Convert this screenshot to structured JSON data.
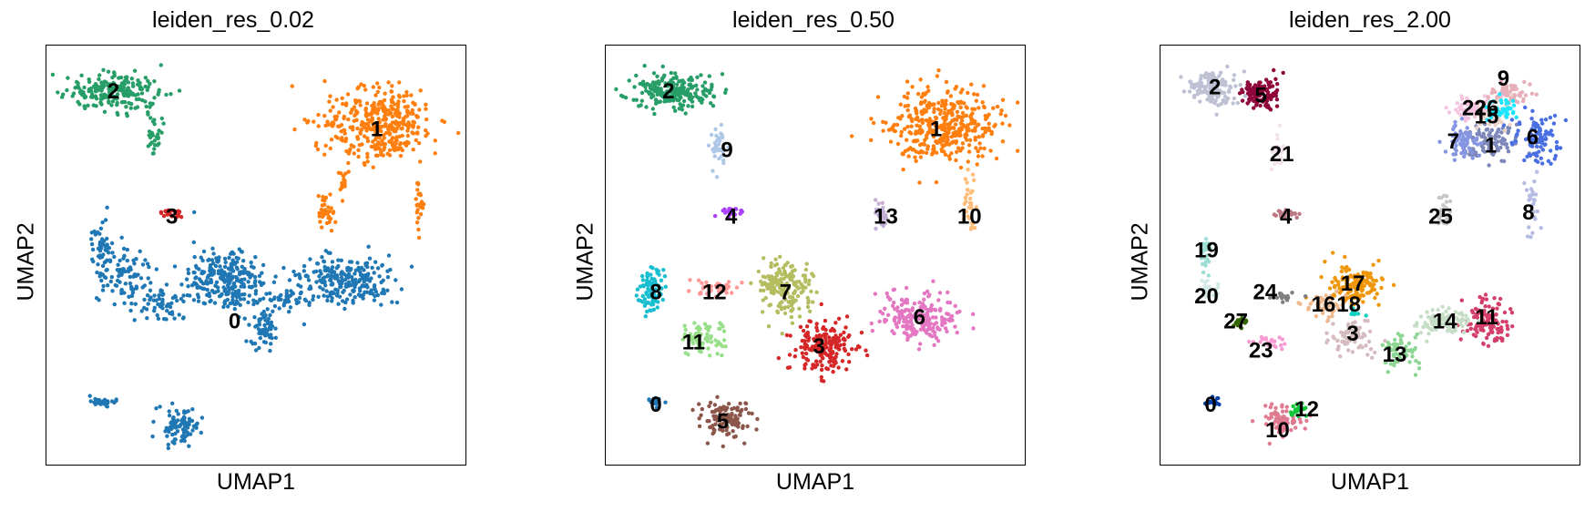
{
  "chart_data": [
    {
      "type": "scatter",
      "title": "leiden_res_0.02",
      "xlabel": "UMAP1",
      "ylabel": "UMAP2",
      "grid": false,
      "legend": "on data",
      "clusters": [
        {
          "label": "0",
          "color": "#1f77b4",
          "blobs": [
            [
              0.43,
              0.56,
              0.09,
              0.07,
              260
            ],
            [
              0.72,
              0.56,
              0.1,
              0.05,
              240
            ],
            [
              0.18,
              0.55,
              0.06,
              0.06,
              90
            ],
            [
              0.28,
              0.62,
              0.06,
              0.04,
              60
            ],
            [
              0.13,
              0.47,
              0.02,
              0.05,
              40
            ],
            [
              0.32,
              0.91,
              0.05,
              0.04,
              90
            ],
            [
              0.13,
              0.85,
              0.03,
              0.01,
              25
            ],
            [
              0.52,
              0.68,
              0.03,
              0.05,
              60
            ],
            [
              0.58,
              0.61,
              0.04,
              0.03,
              40
            ]
          ]
        },
        {
          "label": "1",
          "color": "#ff7f0e",
          "blobs": [
            [
              0.8,
              0.19,
              0.12,
              0.08,
              380
            ],
            [
              0.67,
              0.4,
              0.02,
              0.03,
              35
            ],
            [
              0.89,
              0.38,
              0.01,
              0.06,
              25
            ],
            [
              0.71,
              0.33,
              0.01,
              0.04,
              15
            ]
          ]
        },
        {
          "label": "2",
          "color": "#279e68",
          "blobs": [
            [
              0.16,
              0.11,
              0.1,
              0.04,
              220
            ],
            [
              0.26,
              0.22,
              0.02,
              0.05,
              30
            ]
          ]
        },
        {
          "label": "3",
          "color": "#d62728",
          "blobs": [
            [
              0.3,
              0.4,
              0.025,
              0.01,
              25
            ]
          ]
        }
      ],
      "labels": [
        {
          "text": "0",
          "x": 0.45,
          "y": 0.66
        },
        {
          "text": "1",
          "x": 0.79,
          "y": 0.2
        },
        {
          "text": "2",
          "x": 0.16,
          "y": 0.11
        },
        {
          "text": "3",
          "x": 0.3,
          "y": 0.41
        }
      ]
    },
    {
      "type": "scatter",
      "title": "leiden_res_0.50",
      "xlabel": "UMAP1",
      "ylabel": "UMAP2",
      "grid": false,
      "legend": "on data",
      "clusters": [
        {
          "label": "0",
          "color": "#1f77b4",
          "blobs": [
            [
              0.12,
              0.85,
              0.02,
              0.008,
              20
            ]
          ]
        },
        {
          "label": "1",
          "color": "#ff7f0e",
          "blobs": [
            [
              0.8,
              0.19,
              0.12,
              0.08,
              380
            ]
          ]
        },
        {
          "label": "2",
          "color": "#279e68",
          "blobs": [
            [
              0.16,
              0.11,
              0.1,
              0.04,
              220
            ]
          ]
        },
        {
          "label": "3",
          "color": "#d62728",
          "blobs": [
            [
              0.52,
              0.72,
              0.07,
              0.06,
              190
            ]
          ]
        },
        {
          "label": "4",
          "color": "#aa40fc",
          "blobs": [
            [
              0.3,
              0.4,
              0.025,
              0.01,
              25
            ]
          ]
        },
        {
          "label": "5",
          "color": "#8c564b",
          "blobs": [
            [
              0.29,
              0.89,
              0.05,
              0.04,
              120
            ]
          ]
        },
        {
          "label": "6",
          "color": "#e377c2",
          "blobs": [
            [
              0.75,
              0.65,
              0.08,
              0.05,
              210
            ]
          ]
        },
        {
          "label": "7",
          "color": "#b5bd61",
          "blobs": [
            [
              0.43,
              0.58,
              0.06,
              0.06,
              180
            ]
          ]
        },
        {
          "label": "8",
          "color": "#17becf",
          "blobs": [
            [
              0.11,
              0.58,
              0.03,
              0.05,
              80
            ]
          ]
        },
        {
          "label": "9",
          "color": "#aec7e8",
          "blobs": [
            [
              0.27,
              0.24,
              0.02,
              0.05,
              40
            ]
          ]
        },
        {
          "label": "10",
          "color": "#ffbb78",
          "blobs": [
            [
              0.87,
              0.38,
              0.015,
              0.06,
              30
            ]
          ]
        },
        {
          "label": "11",
          "color": "#98df8a",
          "blobs": [
            [
              0.23,
              0.7,
              0.06,
              0.04,
              70
            ]
          ]
        },
        {
          "label": "12",
          "color": "#ff9896",
          "blobs": [
            [
              0.26,
              0.58,
              0.05,
              0.02,
              35
            ]
          ]
        },
        {
          "label": "13",
          "color": "#c5b0d5",
          "blobs": [
            [
              0.66,
              0.4,
              0.015,
              0.03,
              35
            ]
          ]
        }
      ],
      "labels": [
        {
          "text": "0",
          "x": 0.12,
          "y": 0.86
        },
        {
          "text": "1",
          "x": 0.79,
          "y": 0.2
        },
        {
          "text": "2",
          "x": 0.15,
          "y": 0.11
        },
        {
          "text": "3",
          "x": 0.51,
          "y": 0.72
        },
        {
          "text": "4",
          "x": 0.3,
          "y": 0.41
        },
        {
          "text": "5",
          "x": 0.28,
          "y": 0.9
        },
        {
          "text": "6",
          "x": 0.75,
          "y": 0.65
        },
        {
          "text": "7",
          "x": 0.43,
          "y": 0.59
        },
        {
          "text": "8",
          "x": 0.12,
          "y": 0.59
        },
        {
          "text": "9",
          "x": 0.29,
          "y": 0.25
        },
        {
          "text": "10",
          "x": 0.87,
          "y": 0.41
        },
        {
          "text": "11",
          "x": 0.21,
          "y": 0.71
        },
        {
          "text": "12",
          "x": 0.26,
          "y": 0.59
        },
        {
          "text": "13",
          "x": 0.67,
          "y": 0.41
        }
      ]
    },
    {
      "type": "scatter",
      "title": "leiden_res_2.00",
      "xlabel": "UMAP1",
      "ylabel": "UMAP2",
      "grid": false,
      "legend": "on data",
      "clusters": [
        {
          "label": "0",
          "color": "#023fa5",
          "blobs": [
            [
              0.12,
              0.85,
              0.02,
              0.008,
              20
            ]
          ]
        },
        {
          "label": "1",
          "color": "#7d87b9",
          "blobs": [
            [
              0.8,
              0.23,
              0.06,
              0.04,
              90
            ]
          ]
        },
        {
          "label": "2",
          "color": "#bec1d4",
          "blobs": [
            [
              0.13,
              0.1,
              0.05,
              0.04,
              140
            ]
          ]
        },
        {
          "label": "3",
          "color": "#d6bcc0",
          "blobs": [
            [
              0.46,
              0.7,
              0.05,
              0.04,
              70
            ]
          ]
        },
        {
          "label": "4",
          "color": "#bb7784",
          "blobs": [
            [
              0.3,
              0.4,
              0.025,
              0.01,
              25
            ]
          ]
        },
        {
          "label": "5",
          "color": "#8e063b",
          "blobs": [
            [
              0.24,
              0.11,
              0.04,
              0.04,
              110
            ]
          ]
        },
        {
          "label": "6",
          "color": "#4a6fe3",
          "blobs": [
            [
              0.9,
              0.22,
              0.05,
              0.05,
              100
            ]
          ]
        },
        {
          "label": "7",
          "color": "#8595e1",
          "blobs": [
            [
              0.72,
              0.23,
              0.04,
              0.04,
              70
            ]
          ]
        },
        {
          "label": "8",
          "color": "#b5bbe3",
          "blobs": [
            [
              0.89,
              0.38,
              0.015,
              0.06,
              25
            ]
          ]
        },
        {
          "label": "9",
          "color": "#e6afb9",
          "blobs": [
            [
              0.83,
              0.11,
              0.05,
              0.03,
              70
            ]
          ]
        },
        {
          "label": "10",
          "color": "#e07b91",
          "blobs": [
            [
              0.29,
              0.9,
              0.04,
              0.03,
              80
            ]
          ]
        },
        {
          "label": "11",
          "color": "#d33f6a",
          "blobs": [
            [
              0.78,
              0.66,
              0.05,
              0.05,
              120
            ]
          ]
        },
        {
          "label": "12",
          "color": "#11c638",
          "blobs": [
            [
              0.33,
              0.87,
              0.02,
              0.015,
              25
            ]
          ]
        },
        {
          "label": "13",
          "color": "#8dd593",
          "blobs": [
            [
              0.57,
              0.73,
              0.04,
              0.04,
              60
            ]
          ]
        },
        {
          "label": "14",
          "color": "#c6dec7",
          "blobs": [
            [
              0.68,
              0.66,
              0.06,
              0.03,
              90
            ]
          ]
        },
        {
          "label": "15",
          "color": "#ead3c6",
          "blobs": [
            [
              0.79,
              0.16,
              0.04,
              0.03,
              60
            ]
          ]
        },
        {
          "label": "16",
          "color": "#f0b98d",
          "blobs": [
            [
              0.4,
              0.62,
              0.04,
              0.03,
              50
            ]
          ]
        },
        {
          "label": "17",
          "color": "#ef9708",
          "blobs": [
            [
              0.46,
              0.57,
              0.06,
              0.04,
              140
            ]
          ]
        },
        {
          "label": "18",
          "color": "#0fcfc0",
          "blobs": [
            [
              0.47,
              0.64,
              0.02,
              0.01,
              8
            ]
          ]
        },
        {
          "label": "19",
          "color": "#9cded6",
          "blobs": [
            [
              0.11,
              0.5,
              0.015,
              0.04,
              25
            ]
          ]
        },
        {
          "label": "20",
          "color": "#d5eae7",
          "blobs": [
            [
              0.12,
              0.58,
              0.02,
              0.02,
              25
            ]
          ]
        },
        {
          "label": "21",
          "color": "#f3e1eb",
          "blobs": [
            [
              0.28,
              0.25,
              0.02,
              0.04,
              25
            ]
          ]
        },
        {
          "label": "22",
          "color": "#f6c4e1",
          "blobs": [
            [
              0.74,
              0.15,
              0.04,
              0.03,
              50
            ]
          ]
        },
        {
          "label": "23",
          "color": "#f79cd4",
          "blobs": [
            [
              0.26,
              0.71,
              0.04,
              0.015,
              25
            ]
          ]
        },
        {
          "label": "24",
          "color": "#7f7f7f",
          "blobs": [
            [
              0.29,
              0.6,
              0.04,
              0.01,
              20
            ]
          ]
        },
        {
          "label": "25",
          "color": "#c7c7c7",
          "blobs": [
            [
              0.68,
              0.4,
              0.015,
              0.04,
              30
            ]
          ]
        },
        {
          "label": "26",
          "color": "#1ce6ff",
          "blobs": [
            [
              0.82,
              0.15,
              0.04,
              0.03,
              40
            ]
          ]
        },
        {
          "label": "27",
          "color": "#336600",
          "blobs": [
            [
              0.19,
              0.66,
              0.015,
              0.015,
              15
            ]
          ]
        }
      ],
      "labels": [
        {
          "text": "0",
          "x": 0.12,
          "y": 0.86
        },
        {
          "text": "1",
          "x": 0.79,
          "y": 0.24
        },
        {
          "text": "2",
          "x": 0.13,
          "y": 0.1
        },
        {
          "text": "3",
          "x": 0.46,
          "y": 0.69
        },
        {
          "text": "4",
          "x": 0.3,
          "y": 0.41
        },
        {
          "text": "5",
          "x": 0.24,
          "y": 0.12
        },
        {
          "text": "6",
          "x": 0.89,
          "y": 0.22
        },
        {
          "text": "7",
          "x": 0.7,
          "y": 0.23
        },
        {
          "text": "8",
          "x": 0.88,
          "y": 0.4
        },
        {
          "text": "9",
          "x": 0.82,
          "y": 0.08
        },
        {
          "text": "10",
          "x": 0.28,
          "y": 0.92
        },
        {
          "text": "11",
          "x": 0.78,
          "y": 0.65
        },
        {
          "text": "12",
          "x": 0.35,
          "y": 0.87
        },
        {
          "text": "13",
          "x": 0.56,
          "y": 0.74
        },
        {
          "text": "14",
          "x": 0.68,
          "y": 0.66
        },
        {
          "text": "15",
          "x": 0.78,
          "y": 0.17
        },
        {
          "text": "16",
          "x": 0.39,
          "y": 0.62
        },
        {
          "text": "17",
          "x": 0.46,
          "y": 0.57
        },
        {
          "text": "18",
          "x": 0.45,
          "y": 0.62
        },
        {
          "text": "19",
          "x": 0.11,
          "y": 0.49
        },
        {
          "text": "20",
          "x": 0.11,
          "y": 0.6
        },
        {
          "text": "21",
          "x": 0.29,
          "y": 0.26
        },
        {
          "text": "22",
          "x": 0.75,
          "y": 0.15
        },
        {
          "text": "23",
          "x": 0.24,
          "y": 0.73
        },
        {
          "text": "24",
          "x": 0.25,
          "y": 0.59
        },
        {
          "text": "25",
          "x": 0.67,
          "y": 0.41
        },
        {
          "text": "26",
          "x": 0.78,
          "y": 0.15
        },
        {
          "text": "27",
          "x": 0.18,
          "y": 0.66
        }
      ]
    }
  ]
}
